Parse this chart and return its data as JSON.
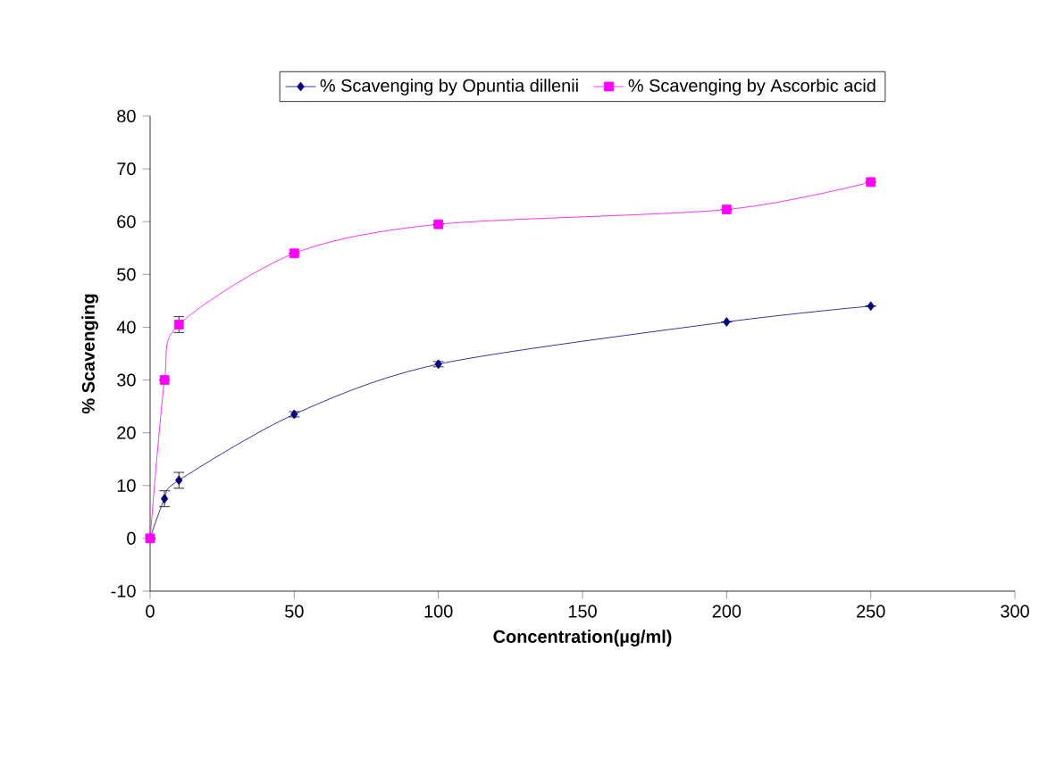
{
  "chart_data": {
    "type": "line",
    "xlabel": "Concentration(µg/ml)",
    "ylabel": "% Scavenging",
    "x": [
      0,
      5,
      10,
      50,
      100,
      200,
      250
    ],
    "series": [
      {
        "name": "% Scavenging by Opuntia dillenii",
        "color": "#000080",
        "marker": "diamond",
        "values": [
          0,
          7.5,
          11,
          23.5,
          33,
          41,
          44
        ],
        "errors": [
          null,
          1.5,
          1.5,
          0.5,
          0.5,
          null,
          null
        ]
      },
      {
        "name": "% Scavenging by Ascorbic acid",
        "color": "#ff00ff",
        "marker": "square",
        "values": [
          0,
          30,
          40.5,
          54,
          59.5,
          62.3,
          67.5
        ],
        "errors": [
          null,
          null,
          1.5,
          null,
          null,
          null,
          null
        ]
      }
    ],
    "xlim": [
      0,
      300
    ],
    "xticks": [
      0,
      50,
      100,
      150,
      200,
      250,
      300
    ],
    "ylim": [
      -10,
      80
    ],
    "yticks": [
      -10,
      0,
      10,
      20,
      30,
      40,
      50,
      60,
      70,
      80
    ],
    "legend": "top",
    "grid": false
  }
}
